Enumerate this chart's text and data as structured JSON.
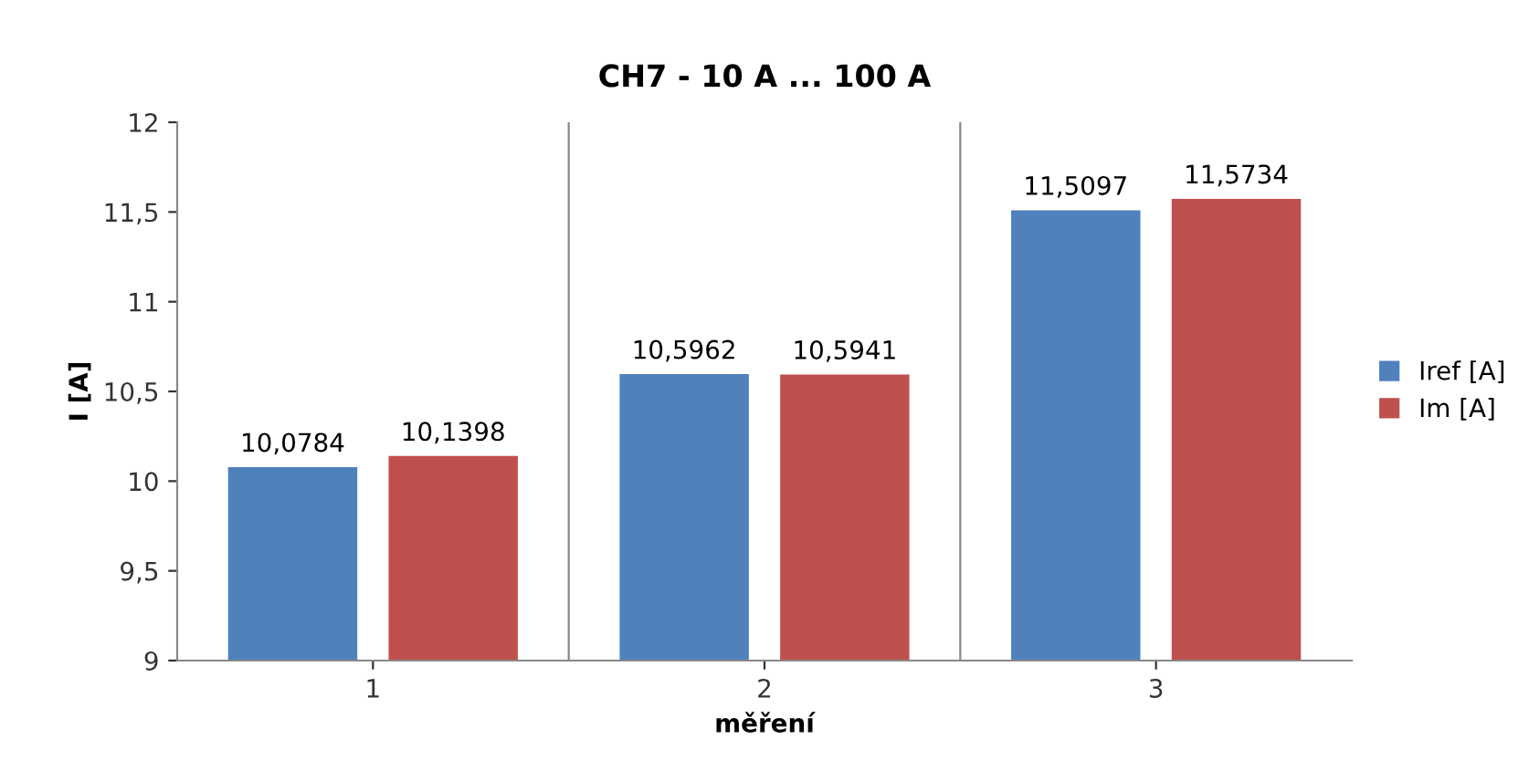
{
  "chart_data": {
    "type": "bar",
    "title": "CH7 - 10 A ... 100 A",
    "xlabel": "měření",
    "ylabel": "I [A]",
    "categories": [
      "1",
      "2",
      "3"
    ],
    "series": [
      {
        "name": "Iref [A]",
        "color": "#4f81bd",
        "values": [
          10.0784,
          10.5962,
          11.5097
        ],
        "value_labels": [
          "10,0784",
          "10,5962",
          "11,5097"
        ]
      },
      {
        "name": "Im [A]",
        "color": "#c0504d",
        "values": [
          10.1398,
          10.5941,
          11.5734
        ],
        "value_labels": [
          "10,1398",
          "10,5941",
          "11,5734"
        ]
      }
    ],
    "ylim": [
      9,
      12
    ],
    "yticks": [
      9,
      {
        "value": 9.5,
        "label": "9,5"
      },
      10,
      {
        "value": 10.5,
        "label": "10,5"
      },
      11,
      {
        "value": 11.5,
        "label": "11,5"
      },
      12
    ],
    "grid": "x",
    "legend": "right"
  }
}
